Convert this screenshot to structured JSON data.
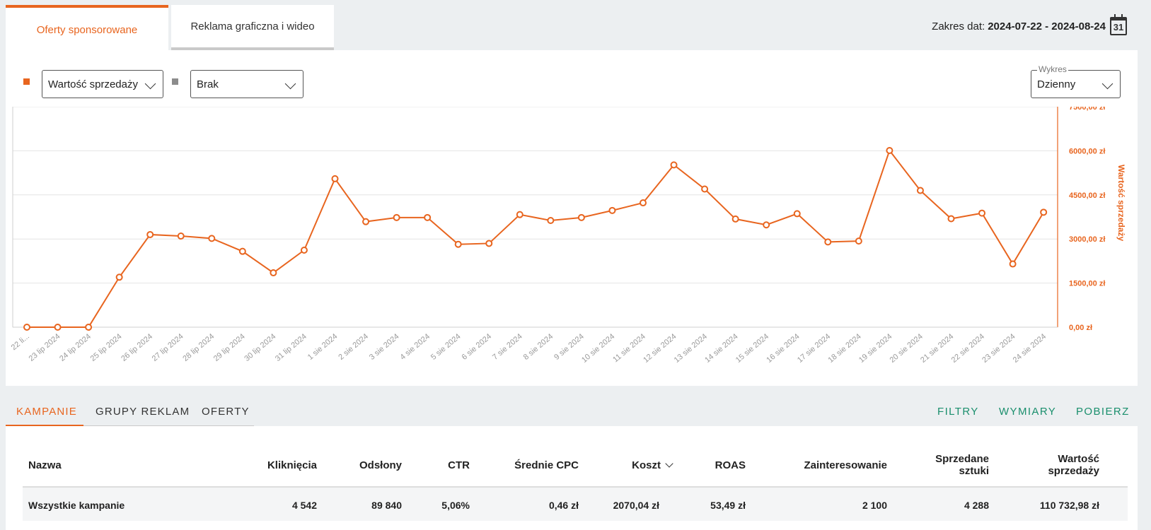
{
  "tabs": [
    {
      "label": "Oferty sponsorowane",
      "active": true
    },
    {
      "label": "Reklama graficzna i wideo",
      "active": false
    }
  ],
  "date_range": {
    "label": "Zakres dat:",
    "value": "2024-07-22 - 2024-08-24",
    "calendar_day": "31"
  },
  "controls": {
    "metric1": "Wartość sprzedaży",
    "metric2": "Brak",
    "chart_mode_label": "Wykres",
    "chart_mode": "Dzienny"
  },
  "colors": {
    "accent": "#e8651f",
    "secondary_square": "#8c8c8c",
    "action": "#1a8f6d"
  },
  "chart_data": {
    "type": "line",
    "x": [
      "22 li...",
      "23 lip 2024",
      "24 lip 2024",
      "25 lip 2024",
      "26 lip 2024",
      "27 lip 2024",
      "28 lip 2024",
      "29 lip 2024",
      "30 lip 2024",
      "31 lip 2024",
      "1 sie 2024",
      "2 sie 2024",
      "3 sie 2024",
      "4 sie 2024",
      "5 sie 2024",
      "6 sie 2024",
      "7 sie 2024",
      "8 sie 2024",
      "9 sie 2024",
      "10 sie 2024",
      "11 sie 2024",
      "12 sie 2024",
      "13 sie 2024",
      "14 sie 2024",
      "15 sie 2024",
      "16 sie 2024",
      "17 sie 2024",
      "18 sie 2024",
      "19 sie 2024",
      "20 sie 2024",
      "21 sie 2024",
      "22 sie 2024",
      "23 sie 2024",
      "24 sie 2024"
    ],
    "series": [
      {
        "name": "Wartość sprzedaży",
        "values": [
          0,
          0,
          0,
          1700,
          3150,
          3100,
          3020,
          2580,
          1850,
          2620,
          5050,
          3590,
          3730,
          3730,
          2820,
          2850,
          3830,
          3630,
          3730,
          3970,
          4230,
          5520,
          4700,
          3680,
          3480,
          3860,
          2900,
          2930,
          6010,
          4650,
          3690,
          3880,
          2150,
          3910
        ]
      }
    ],
    "ylabel": "Wartość sprzedaży",
    "ylim": [
      0,
      7500
    ],
    "yticks": [
      "0,00 zł",
      "1500,00 zł",
      "3000,00 zł",
      "4500,00 zł",
      "6000,00 zł",
      "7500,00 zł"
    ],
    "y_axis_side": "right",
    "grid": true
  },
  "subtabs": [
    {
      "label": "KAMPANIE",
      "active": true
    },
    {
      "label": "GRUPY REKLAM",
      "active": false
    },
    {
      "label": "OFERTY",
      "active": false
    }
  ],
  "actions": {
    "filters": "FILTRY",
    "dimensions": "WYMIARY",
    "download": "POBIERZ"
  },
  "table": {
    "headers": {
      "name": "Nazwa",
      "clicks": "Kliknięcia",
      "views": "Odsłony",
      "ctr": "CTR",
      "cpc": "Średnie CPC",
      "cost": "Koszt",
      "roas": "ROAS",
      "interest": "Zainteresowanie",
      "sold_1": "Sprzedane",
      "sold_2": "sztuki",
      "value_1": "Wartość",
      "value_2": "sprzedaży"
    },
    "summary": {
      "name": "Wszystkie kampanie",
      "clicks": "4 542",
      "views": "89 840",
      "ctr": "5,06%",
      "cpc": "0,46 zł",
      "cost": "2070,04 zł",
      "roas": "53,49 zł",
      "interest": "2 100",
      "sold": "4 288",
      "value": "110 732,98 zł"
    }
  }
}
